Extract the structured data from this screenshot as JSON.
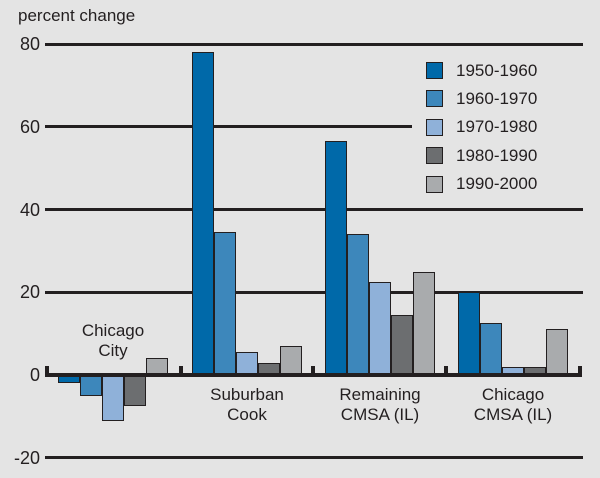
{
  "colors": {
    "background": "#e4e4e4",
    "ink": "#231f20"
  },
  "chart_data": {
    "type": "bar",
    "title": "percent change",
    "xlabel": "",
    "ylabel": "percent change",
    "categories": [
      "Chicago City",
      "Suburban Cook",
      "Remaining CMSA (IL)",
      "Chicago CMSA (IL)"
    ],
    "category_label_lines": [
      [
        "Chicago",
        "City"
      ],
      [
        "Suburban",
        "Cook"
      ],
      [
        "Remaining",
        "CMSA (IL)"
      ],
      [
        "Chicago",
        "CMSA (IL)"
      ]
    ],
    "category_label_inside": [
      true,
      false,
      false,
      false
    ],
    "series": [
      {
        "name": "1950-1960",
        "color": "#0069a9",
        "values": [
          -2,
          78,
          56.5,
          20
        ]
      },
      {
        "name": "1960-1970",
        "color": "#3d87bb",
        "values": [
          -5,
          34.5,
          34,
          12.5
        ]
      },
      {
        "name": "1970-1980",
        "color": "#8fb1d9",
        "values": [
          -11,
          5.5,
          22.5,
          2
        ]
      },
      {
        "name": "1980-1990",
        "color": "#6c6e70",
        "values": [
          -7.5,
          3,
          14.5,
          2
        ]
      },
      {
        "name": "1990-2000",
        "color": "#a9abad",
        "values": [
          4,
          7,
          25,
          11
        ]
      }
    ],
    "yticks": [
      80,
      60,
      40,
      20,
      0,
      -20
    ],
    "ylim": [
      -25,
      85
    ],
    "grid": true,
    "legend_position": "top-right"
  }
}
